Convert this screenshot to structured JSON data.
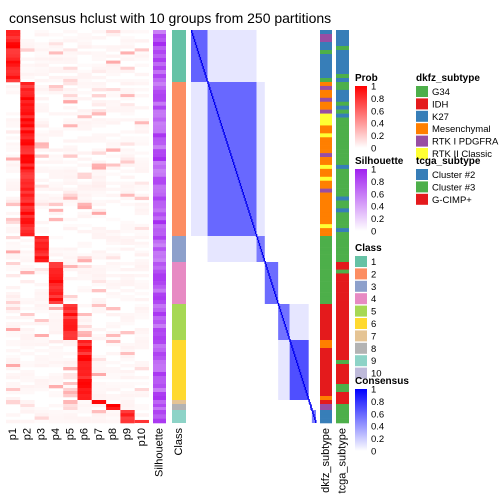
{
  "title": "consensus hclust with 10 groups from 250 partitions",
  "chart_data": {
    "type": "heatmap",
    "title": "consensus hclust with 10 groups from 250 partitions",
    "membership_columns": [
      "p1",
      "p2",
      "p3",
      "p4",
      "p5",
      "p6",
      "p7",
      "p8",
      "p9",
      "p10"
    ],
    "annotation_labels": {
      "silhouette": "Silhouette",
      "class": "Class",
      "dkfz": "dkfz_subtype",
      "tcga": "tcga_subtype"
    },
    "groups_in_row_order": [
      1,
      2,
      3,
      4,
      5,
      6,
      7,
      8,
      9,
      10
    ],
    "legends": {
      "prob": {
        "title": "Prob",
        "ticks": [
          "1",
          "0.8",
          "0.6",
          "0.4",
          "0.2",
          "0"
        ],
        "colors": [
          "#ff0000",
          "#ffffff"
        ]
      },
      "silhouette": {
        "title": "Silhouette",
        "ticks": [
          "1",
          "0.8",
          "0.6",
          "0.4",
          "0.2",
          "0"
        ],
        "colors": [
          "#a020f0",
          "#ffffff"
        ]
      },
      "class": {
        "title": "Class",
        "items": [
          {
            "label": "1",
            "color": "#66c2a5"
          },
          {
            "label": "2",
            "color": "#fc8d62"
          },
          {
            "label": "3",
            "color": "#8da0cb"
          },
          {
            "label": "4",
            "color": "#e78ac3"
          },
          {
            "label": "5",
            "color": "#a6d854"
          },
          {
            "label": "6",
            "color": "#ffd92f"
          },
          {
            "label": "7",
            "color": "#e5c494"
          },
          {
            "label": "8",
            "color": "#b3b3b3"
          },
          {
            "label": "9",
            "color": "#8dd3c7"
          },
          {
            "label": "10",
            "color": "#bebada"
          }
        ]
      },
      "consensus": {
        "title": "Consensus",
        "ticks": [
          "1",
          "0.8",
          "0.6",
          "0.4",
          "0.2",
          "0"
        ],
        "colors": [
          "#0000ff",
          "#ffffff"
        ]
      },
      "dkfz_subtype": {
        "title": "dkfz_subtype",
        "items": [
          {
            "label": "G34",
            "color": "#4daf4a"
          },
          {
            "label": "IDH",
            "color": "#e41a1c"
          },
          {
            "label": "K27",
            "color": "#377eb8"
          },
          {
            "label": "Mesenchymal",
            "color": "#ff7f00"
          },
          {
            "label": "RTK I PDGFRA",
            "color": "#984ea3"
          },
          {
            "label": "RTK II Classic",
            "color": "#ffff33"
          }
        ]
      },
      "tcga_subtype": {
        "title": "tcga_subtype",
        "items": [
          {
            "label": "Cluster #2",
            "color": "#377eb8"
          },
          {
            "label": "Cluster #3",
            "color": "#4daf4a"
          },
          {
            "label": "G-CIMP+",
            "color": "#e41a1c"
          }
        ]
      }
    }
  }
}
